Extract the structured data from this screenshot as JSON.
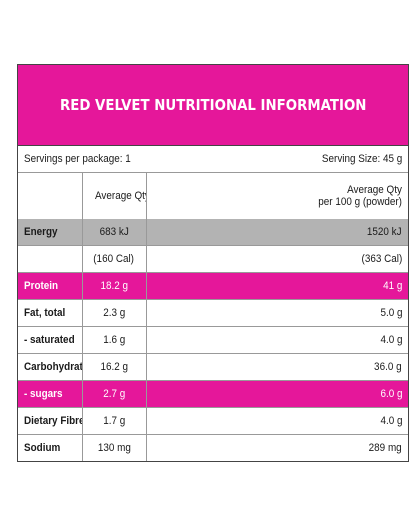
{
  "title": "RED VELVET NUTRITIONAL INFORMATION",
  "servings_per_package": "Servings per package: 1",
  "serving_size": "Serving Size: 45 g",
  "headers": {
    "per_serving": "Average Qty per Serving",
    "per_100g_line1": "Average Qty",
    "per_100g_line2": "per 100 g (powder)"
  },
  "rows": [
    {
      "label": "Energy",
      "per_serving": "683 kJ",
      "per_100g": "1520 kJ",
      "style": "grey"
    },
    {
      "label": "",
      "per_serving": "(160 Cal)",
      "per_100g": "(363 Cal)",
      "style": "plain"
    },
    {
      "label": "Protein",
      "per_serving": "18.2 g",
      "per_100g": "41 g",
      "style": "pink"
    },
    {
      "label": "Fat, total",
      "per_serving": "2.3 g",
      "per_100g": "5.0 g",
      "style": "plain"
    },
    {
      "label": "- saturated",
      "per_serving": "1.6 g",
      "per_100g": "4.0 g",
      "style": "plain"
    },
    {
      "label": "Carbohydrate",
      "per_serving": "16.2 g",
      "per_100g": "36.0 g",
      "style": "plain"
    },
    {
      "label": "- sugars",
      "per_serving": "2.7 g",
      "per_100g": "6.0 g",
      "style": "pink"
    },
    {
      "label": "Dietary Fibre",
      "per_serving": "1.7 g",
      "per_100g": "4.0 g",
      "style": "plain"
    },
    {
      "label": "Sodium",
      "per_serving": "130 mg",
      "per_100g": "289 mg",
      "style": "plain"
    }
  ],
  "colors": {
    "accent_pink": "#e5179a",
    "energy_grey": "#b3b3b3"
  }
}
